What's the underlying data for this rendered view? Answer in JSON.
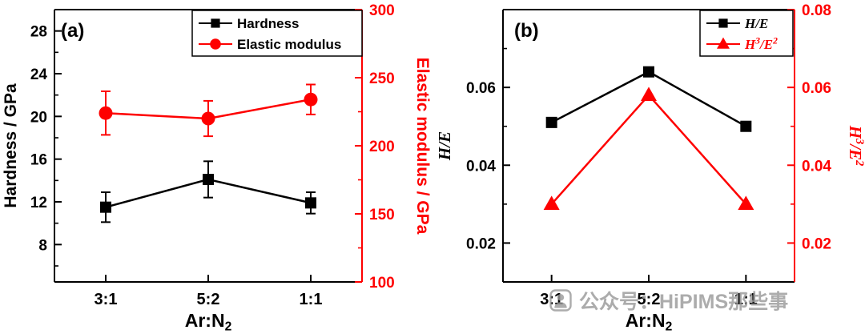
{
  "figure": {
    "background": "#ffffff",
    "accent_red": "#fe0000",
    "accent_black": "#000000"
  },
  "watermark": {
    "icon": "person-icon",
    "text": "公众号：HiPIMS那些事",
    "color": "#9b9b9b"
  },
  "chart_data": [
    {
      "type": "line",
      "panel_label": "(a)",
      "categories": [
        "3:1",
        "5:2",
        "1:1"
      ],
      "xlabel": "Ar:N_2",
      "grid": false,
      "legend": {
        "position": "top-center-right",
        "italic": false
      },
      "axes": {
        "left": {
          "label": "Hardness / GPa",
          "color": "#000000",
          "italic": false,
          "ticks": [
            "8",
            "12",
            "16",
            "20",
            "24",
            "28"
          ],
          "range": [
            4.5,
            30
          ],
          "minor_step": 2
        },
        "right": {
          "label": "Elastic modulus / GPa",
          "color": "#fe0000",
          "italic": false,
          "ticks": [
            "100",
            "150",
            "200",
            "250",
            "300"
          ],
          "range": [
            100,
            300
          ],
          "minor_step": 25
        }
      },
      "series": [
        {
          "name": "Hardness",
          "axis": "left",
          "marker": "square",
          "color": "#000000",
          "label_color": "#000000",
          "values": [
            11.5,
            14.1,
            11.9
          ],
          "errors": [
            1.4,
            1.7,
            1.0
          ]
        },
        {
          "name": "Elastic modulus",
          "axis": "right",
          "marker": "circle",
          "color": "#fe0000",
          "label_color": "#000000",
          "values": [
            224,
            220,
            234
          ],
          "errors": [
            16,
            13,
            11
          ]
        }
      ]
    },
    {
      "type": "line",
      "panel_label": "(b)",
      "categories": [
        "3:1",
        "5:2",
        "1:1"
      ],
      "xlabel": "Ar:N_2",
      "grid": false,
      "legend": {
        "position": "top-right",
        "italic": true
      },
      "axes": {
        "left": {
          "label": "H/E",
          "color": "#000000",
          "italic": true,
          "ticks": [
            "0.02",
            "0.04",
            "0.06"
          ],
          "range": [
            0.01,
            0.08
          ],
          "minor_step": 0.01
        },
        "right": {
          "label": "H^3/E^2",
          "color": "#fe0000",
          "italic": true,
          "ticks": [
            "0.02",
            "0.04",
            "0.06",
            "0.08"
          ],
          "range": [
            0.01,
            0.08
          ],
          "minor_step": 0.01
        }
      },
      "series": [
        {
          "name": "H/E",
          "axis": "left",
          "marker": "square",
          "color": "#000000",
          "label_color": "#000000",
          "values": [
            0.051,
            0.064,
            0.05
          ],
          "errors": null
        },
        {
          "name": "H^3/E^2",
          "axis": "right",
          "marker": "triangle",
          "color": "#fe0000",
          "label_color": "#fe0000",
          "values": [
            0.03,
            0.058,
            0.03
          ],
          "errors": null
        }
      ]
    }
  ]
}
